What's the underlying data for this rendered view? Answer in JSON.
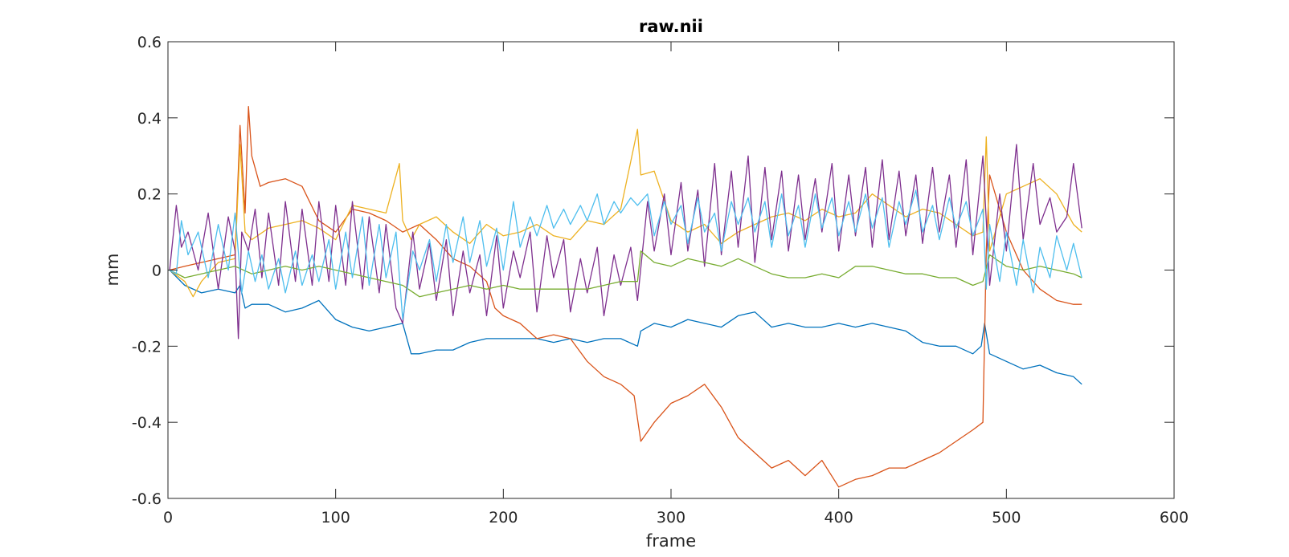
{
  "chart_data": {
    "type": "line",
    "title": "raw.nii",
    "xlabel": "frame",
    "ylabel": "mm",
    "xlim": [
      0,
      600
    ],
    "ylim": [
      -0.6,
      0.6
    ],
    "xticks": [
      0,
      100,
      200,
      300,
      400,
      500,
      600
    ],
    "yticks": [
      -0.6,
      -0.4,
      -0.2,
      0,
      0.2,
      0.4,
      0.6
    ],
    "xtick_labels": [
      "0",
      "100",
      "200",
      "300",
      "400",
      "500",
      "600"
    ],
    "ytick_labels": [
      "-0.6",
      "-0.4",
      "-0.2",
      "0",
      "0.2",
      "0.4",
      "0.6"
    ],
    "grid": false,
    "legend": "none",
    "colors": [
      "#0072BD",
      "#D95319",
      "#EDB120",
      "#7E2F8E",
      "#77AC30",
      "#4DBEEE"
    ],
    "series": [
      {
        "color": "#0072BD",
        "x": [
          1,
          10,
          20,
          30,
          40,
          43,
          46,
          50,
          60,
          70,
          80,
          90,
          100,
          110,
          120,
          130,
          140,
          145,
          150,
          160,
          170,
          180,
          190,
          200,
          210,
          220,
          230,
          240,
          250,
          260,
          270,
          280,
          282,
          290,
          300,
          310,
          320,
          330,
          340,
          350,
          360,
          370,
          380,
          390,
          400,
          410,
          420,
          430,
          440,
          450,
          460,
          470,
          480,
          485,
          487,
          490,
          500,
          510,
          520,
          530,
          540,
          545
        ],
        "y": [
          0.0,
          -0.04,
          -0.06,
          -0.05,
          -0.06,
          -0.04,
          -0.1,
          -0.09,
          -0.09,
          -0.11,
          -0.1,
          -0.08,
          -0.13,
          -0.15,
          -0.16,
          -0.15,
          -0.14,
          -0.22,
          -0.22,
          -0.21,
          -0.21,
          -0.19,
          -0.18,
          -0.18,
          -0.18,
          -0.18,
          -0.19,
          -0.18,
          -0.19,
          -0.18,
          -0.18,
          -0.2,
          -0.16,
          -0.14,
          -0.15,
          -0.13,
          -0.14,
          -0.15,
          -0.12,
          -0.11,
          -0.15,
          -0.14,
          -0.15,
          -0.15,
          -0.14,
          -0.15,
          -0.14,
          -0.15,
          -0.16,
          -0.19,
          -0.2,
          -0.2,
          -0.22,
          -0.2,
          -0.14,
          -0.22,
          -0.24,
          -0.26,
          -0.25,
          -0.27,
          -0.28,
          -0.3
        ]
      },
      {
        "color": "#D95319",
        "x": [
          1,
          10,
          20,
          30,
          40,
          43,
          46,
          48,
          50,
          55,
          60,
          70,
          80,
          90,
          100,
          110,
          120,
          130,
          140,
          150,
          160,
          170,
          180,
          190,
          195,
          200,
          210,
          220,
          230,
          240,
          250,
          260,
          270,
          278,
          282,
          290,
          300,
          310,
          320,
          330,
          340,
          350,
          360,
          370,
          380,
          390,
          400,
          410,
          420,
          430,
          440,
          450,
          460,
          470,
          480,
          486,
          488,
          490,
          500,
          510,
          520,
          530,
          540,
          545
        ],
        "y": [
          0.0,
          0.01,
          0.02,
          0.03,
          0.04,
          0.38,
          0.15,
          0.43,
          0.3,
          0.22,
          0.23,
          0.24,
          0.22,
          0.13,
          0.1,
          0.16,
          0.15,
          0.13,
          0.1,
          0.12,
          0.08,
          0.03,
          0.01,
          -0.03,
          -0.1,
          -0.12,
          -0.14,
          -0.18,
          -0.17,
          -0.18,
          -0.24,
          -0.28,
          -0.3,
          -0.33,
          -0.45,
          -0.4,
          -0.35,
          -0.33,
          -0.3,
          -0.36,
          -0.44,
          -0.48,
          -0.52,
          -0.5,
          -0.54,
          -0.5,
          -0.57,
          -0.55,
          -0.54,
          -0.52,
          -0.52,
          -0.5,
          -0.48,
          -0.45,
          -0.42,
          -0.4,
          0.05,
          0.25,
          0.1,
          0.0,
          -0.05,
          -0.08,
          -0.09,
          -0.09
        ]
      },
      {
        "color": "#EDB120",
        "x": [
          1,
          10,
          15,
          20,
          30,
          40,
          43,
          46,
          50,
          60,
          70,
          80,
          90,
          100,
          110,
          120,
          130,
          138,
          140,
          145,
          150,
          160,
          170,
          180,
          190,
          200,
          210,
          220,
          230,
          240,
          250,
          260,
          270,
          280,
          282,
          290,
          300,
          310,
          320,
          330,
          340,
          350,
          360,
          370,
          380,
          390,
          400,
          410,
          420,
          430,
          440,
          450,
          460,
          470,
          480,
          486,
          488,
          490,
          500,
          510,
          520,
          530,
          540,
          545
        ],
        "y": [
          0.0,
          -0.03,
          -0.07,
          -0.03,
          0.02,
          0.03,
          0.33,
          0.1,
          0.08,
          0.11,
          0.12,
          0.13,
          0.11,
          0.08,
          0.17,
          0.16,
          0.15,
          0.28,
          0.13,
          0.08,
          0.12,
          0.14,
          0.1,
          0.07,
          0.12,
          0.09,
          0.1,
          0.12,
          0.09,
          0.08,
          0.13,
          0.12,
          0.16,
          0.37,
          0.25,
          0.26,
          0.13,
          0.1,
          0.12,
          0.07,
          0.1,
          0.12,
          0.14,
          0.15,
          0.13,
          0.16,
          0.14,
          0.15,
          0.2,
          0.17,
          0.14,
          0.16,
          0.15,
          0.12,
          0.09,
          0.1,
          0.35,
          0.05,
          0.2,
          0.22,
          0.24,
          0.2,
          0.12,
          0.1
        ]
      },
      {
        "color": "#7E2F8E",
        "x": [
          1,
          5,
          8,
          12,
          18,
          24,
          30,
          36,
          40,
          42,
          44,
          48,
          52,
          56,
          60,
          66,
          70,
          76,
          80,
          86,
          90,
          96,
          100,
          106,
          110,
          116,
          120,
          126,
          130,
          136,
          140,
          146,
          150,
          156,
          160,
          166,
          170,
          176,
          180,
          186,
          190,
          196,
          200,
          206,
          210,
          216,
          220,
          226,
          230,
          236,
          240,
          246,
          250,
          256,
          260,
          266,
          270,
          276,
          280,
          286,
          290,
          296,
          300,
          306,
          310,
          316,
          320,
          326,
          330,
          336,
          340,
          346,
          350,
          356,
          360,
          366,
          370,
          376,
          380,
          386,
          390,
          396,
          400,
          406,
          410,
          416,
          420,
          426,
          430,
          436,
          440,
          446,
          450,
          456,
          460,
          466,
          470,
          476,
          480,
          486,
          490,
          496,
          500,
          506,
          510,
          516,
          520,
          526,
          530,
          536,
          540,
          545
        ],
        "y": [
          0.0,
          0.17,
          0.06,
          0.1,
          0.0,
          0.15,
          -0.05,
          0.14,
          0.05,
          -0.18,
          0.1,
          0.05,
          0.16,
          -0.02,
          0.15,
          -0.04,
          0.18,
          -0.03,
          0.16,
          -0.04,
          0.18,
          -0.03,
          0.17,
          -0.04,
          0.18,
          -0.05,
          0.14,
          -0.06,
          0.12,
          -0.1,
          -0.14,
          0.1,
          -0.05,
          0.07,
          -0.08,
          0.08,
          -0.12,
          0.05,
          -0.06,
          0.04,
          -0.12,
          0.09,
          -0.1,
          0.05,
          -0.02,
          0.1,
          -0.11,
          0.09,
          -0.02,
          0.08,
          -0.11,
          0.03,
          -0.06,
          0.06,
          -0.12,
          0.04,
          -0.04,
          0.06,
          -0.08,
          0.18,
          0.05,
          0.2,
          0.04,
          0.23,
          0.05,
          0.21,
          0.01,
          0.28,
          0.04,
          0.26,
          0.06,
          0.3,
          0.02,
          0.27,
          0.08,
          0.26,
          0.05,
          0.25,
          0.08,
          0.24,
          0.1,
          0.28,
          0.05,
          0.25,
          0.09,
          0.27,
          0.06,
          0.29,
          0.08,
          0.26,
          0.09,
          0.25,
          0.07,
          0.27,
          0.1,
          0.25,
          0.06,
          0.29,
          0.04,
          0.3,
          -0.04,
          0.2,
          0.05,
          0.33,
          0.08,
          0.28,
          0.12,
          0.19,
          0.1,
          0.14,
          0.28,
          0.11
        ]
      },
      {
        "color": "#77AC30",
        "x": [
          1,
          10,
          20,
          30,
          40,
          50,
          60,
          70,
          80,
          90,
          100,
          110,
          120,
          130,
          140,
          150,
          160,
          170,
          180,
          190,
          200,
          210,
          220,
          230,
          240,
          250,
          260,
          270,
          280,
          282,
          290,
          300,
          310,
          320,
          330,
          340,
          350,
          360,
          370,
          380,
          390,
          400,
          410,
          420,
          430,
          440,
          450,
          460,
          470,
          480,
          486,
          490,
          500,
          510,
          520,
          530,
          540,
          545
        ],
        "y": [
          0.0,
          -0.02,
          -0.01,
          0.0,
          0.01,
          -0.01,
          0.0,
          0.01,
          0.0,
          0.01,
          0.0,
          -0.01,
          -0.02,
          -0.03,
          -0.04,
          -0.07,
          -0.06,
          -0.05,
          -0.04,
          -0.05,
          -0.04,
          -0.05,
          -0.05,
          -0.05,
          -0.05,
          -0.05,
          -0.04,
          -0.03,
          -0.03,
          0.05,
          0.02,
          0.01,
          0.03,
          0.02,
          0.01,
          0.03,
          0.01,
          -0.01,
          -0.02,
          -0.02,
          -0.01,
          -0.02,
          0.01,
          0.01,
          0.0,
          -0.01,
          -0.01,
          -0.02,
          -0.02,
          -0.04,
          -0.03,
          0.04,
          0.01,
          0.0,
          0.01,
          0.0,
          -0.01,
          -0.02
        ]
      },
      {
        "color": "#4DBEEE",
        "x": [
          1,
          5,
          8,
          12,
          18,
          24,
          30,
          36,
          40,
          44,
          48,
          52,
          56,
          60,
          66,
          70,
          76,
          80,
          86,
          90,
          96,
          100,
          106,
          110,
          116,
          120,
          126,
          130,
          136,
          140,
          146,
          150,
          156,
          160,
          166,
          170,
          176,
          180,
          186,
          190,
          196,
          200,
          206,
          210,
          216,
          220,
          226,
          230,
          236,
          240,
          246,
          250,
          256,
          260,
          266,
          270,
          276,
          280,
          286,
          290,
          296,
          300,
          306,
          310,
          316,
          320,
          326,
          330,
          336,
          340,
          346,
          350,
          356,
          360,
          366,
          370,
          376,
          380,
          386,
          390,
          396,
          400,
          406,
          410,
          416,
          420,
          426,
          430,
          436,
          440,
          446,
          450,
          456,
          460,
          466,
          470,
          476,
          480,
          486,
          488,
          490,
          496,
          500,
          506,
          510,
          516,
          520,
          526,
          530,
          536,
          540,
          545
        ],
        "y": [
          0.0,
          -0.01,
          0.13,
          0.04,
          0.1,
          -0.02,
          0.12,
          0.0,
          0.15,
          -0.06,
          0.05,
          -0.03,
          0.04,
          -0.05,
          0.03,
          -0.06,
          0.05,
          -0.04,
          0.04,
          -0.03,
          0.08,
          -0.05,
          0.1,
          -0.02,
          0.14,
          -0.04,
          0.12,
          -0.02,
          0.1,
          -0.13,
          0.05,
          0.0,
          0.08,
          -0.03,
          0.12,
          0.02,
          0.14,
          0.02,
          0.13,
          0.01,
          0.11,
          0.0,
          0.18,
          0.06,
          0.14,
          0.09,
          0.17,
          0.11,
          0.16,
          0.12,
          0.17,
          0.13,
          0.2,
          0.12,
          0.18,
          0.15,
          0.19,
          0.17,
          0.2,
          0.09,
          0.18,
          0.12,
          0.17,
          0.07,
          0.19,
          0.1,
          0.15,
          0.05,
          0.18,
          0.12,
          0.19,
          0.1,
          0.18,
          0.06,
          0.2,
          0.09,
          0.17,
          0.06,
          0.2,
          0.11,
          0.19,
          0.09,
          0.18,
          0.1,
          0.2,
          0.11,
          0.19,
          0.06,
          0.18,
          0.12,
          0.21,
          0.1,
          0.17,
          0.08,
          0.19,
          0.11,
          0.18,
          0.09,
          0.16,
          -0.05,
          0.12,
          -0.03,
          0.1,
          -0.04,
          0.08,
          -0.06,
          0.06,
          -0.02,
          0.09,
          0.0,
          0.07,
          -0.02
        ]
      }
    ]
  }
}
